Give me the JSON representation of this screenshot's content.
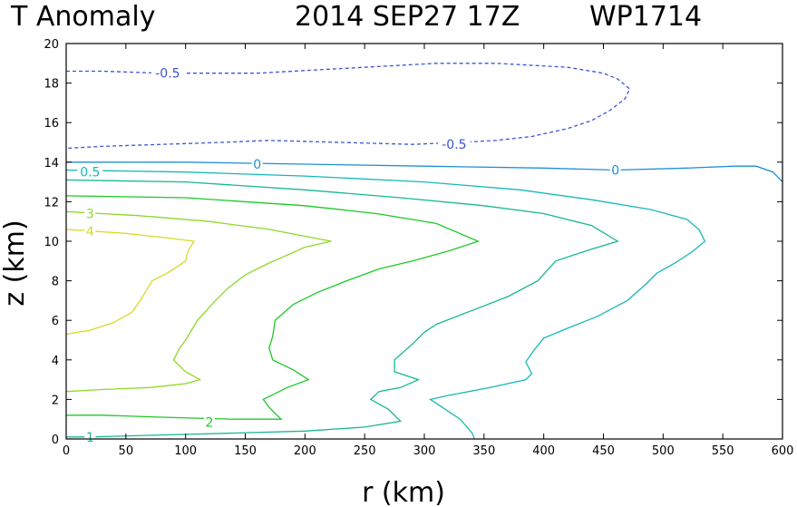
{
  "title": {
    "variable": "T Anomaly",
    "date": "2014 SEP27 17Z",
    "storm": "WP1714"
  },
  "chart_data": {
    "type": "contour",
    "title": "T Anomaly   2014 SEP27 17Z   WP1714",
    "xlabel": "r (km)",
    "ylabel": "z (km)",
    "xlim": [
      0,
      600
    ],
    "ylim": [
      0,
      20
    ],
    "xticks": [
      "0",
      "50",
      "100",
      "150",
      "200",
      "250",
      "300",
      "350",
      "400",
      "450",
      "500",
      "550",
      "600"
    ],
    "yticks": [
      "0",
      "2",
      "4",
      "6",
      "8",
      "10",
      "12",
      "14",
      "16",
      "18",
      "20"
    ],
    "contours": [
      {
        "level": -0.5,
        "label": "-0.5",
        "color": "#3b55d6",
        "dashed": true,
        "points": [
          [
            0,
            18.6
          ],
          [
            30,
            18.6
          ],
          [
            80,
            18.5
          ],
          [
            160,
            18.5
          ],
          [
            220,
            18.7
          ],
          [
            280,
            18.9
          ],
          [
            310,
            19.0
          ],
          [
            360,
            19.0
          ],
          [
            420,
            18.8
          ],
          [
            450,
            18.5
          ],
          [
            462,
            18.2
          ],
          [
            472,
            17.7
          ],
          [
            468,
            17.2
          ],
          [
            455,
            16.6
          ],
          [
            440,
            16.1
          ],
          [
            420,
            15.7
          ],
          [
            390,
            15.3
          ],
          [
            360,
            15.1
          ],
          [
            330,
            15.0
          ],
          [
            290,
            14.9
          ],
          [
            230,
            15.0
          ],
          [
            170,
            15.1
          ],
          [
            130,
            15.0
          ],
          [
            80,
            14.9
          ],
          [
            30,
            14.8
          ],
          [
            0,
            14.7
          ]
        ],
        "label_at": [
          [
            85,
            18.5
          ],
          [
            325,
            14.9
          ]
        ]
      },
      {
        "level": 0,
        "label": "0",
        "color": "#1e8fd8",
        "dashed": false,
        "points": [
          [
            0,
            14.0
          ],
          [
            100,
            14.0
          ],
          [
            200,
            13.9
          ],
          [
            300,
            13.8
          ],
          [
            400,
            13.7
          ],
          [
            460,
            13.6
          ],
          [
            520,
            13.7
          ],
          [
            560,
            13.8
          ],
          [
            578,
            13.8
          ],
          [
            592,
            13.5
          ],
          [
            600,
            13.0
          ]
        ],
        "label_at": [
          [
            160,
            13.9
          ],
          [
            460,
            13.6
          ]
        ]
      },
      {
        "level": 0.5,
        "label": "0.5",
        "color": "#17b8b8",
        "dashed": false,
        "points": [
          [
            0,
            13.6
          ],
          [
            100,
            13.5
          ],
          [
            200,
            13.3
          ],
          [
            300,
            13.0
          ],
          [
            380,
            12.6
          ],
          [
            440,
            12.1
          ],
          [
            490,
            11.6
          ],
          [
            520,
            11.1
          ],
          [
            530,
            10.6
          ],
          [
            535,
            10.0
          ],
          [
            525,
            9.5
          ],
          [
            510,
            8.9
          ],
          [
            495,
            8.4
          ],
          [
            485,
            7.8
          ],
          [
            470,
            7.0
          ],
          [
            445,
            6.2
          ],
          [
            420,
            5.6
          ],
          [
            400,
            5.1
          ],
          [
            392,
            4.5
          ],
          [
            385,
            3.9
          ],
          [
            390,
            3.3
          ],
          [
            385,
            3.0
          ],
          [
            355,
            2.6
          ],
          [
            320,
            2.2
          ],
          [
            305,
            2.0
          ],
          [
            315,
            1.6
          ],
          [
            330,
            1.0
          ],
          [
            340,
            0.3
          ],
          [
            342,
            0.0
          ]
        ],
        "label_at": [
          [
            20,
            13.5
          ]
        ]
      },
      {
        "level": 1,
        "label": "1",
        "color": "#17b890",
        "dashed": false,
        "points": [
          [
            0,
            13.1
          ],
          [
            100,
            13.0
          ],
          [
            200,
            12.6
          ],
          [
            280,
            12.2
          ],
          [
            350,
            11.8
          ],
          [
            400,
            11.4
          ],
          [
            440,
            10.8
          ],
          [
            462,
            10.0
          ],
          [
            440,
            9.6
          ],
          [
            410,
            9.0
          ],
          [
            395,
            8.0
          ],
          [
            370,
            7.2
          ],
          [
            340,
            6.5
          ],
          [
            310,
            5.8
          ],
          [
            300,
            5.4
          ],
          [
            290,
            4.8
          ],
          [
            275,
            4.0
          ],
          [
            275,
            3.4
          ],
          [
            295,
            3.0
          ],
          [
            280,
            2.6
          ],
          [
            262,
            2.4
          ],
          [
            255,
            2.0
          ],
          [
            270,
            1.5
          ],
          [
            280,
            0.9
          ],
          [
            250,
            0.6
          ],
          [
            200,
            0.4
          ],
          [
            140,
            0.3
          ],
          [
            80,
            0.2
          ],
          [
            20,
            0.1
          ],
          [
            0,
            0.1
          ]
        ],
        "label_at": [
          [
            20,
            0.1
          ]
        ]
      },
      {
        "level": 2,
        "label": "2",
        "color": "#1ec828",
        "dashed": false,
        "points": [
          [
            0,
            12.3
          ],
          [
            100,
            12.2
          ],
          [
            200,
            11.8
          ],
          [
            260,
            11.4
          ],
          [
            310,
            10.9
          ],
          [
            345,
            10.0
          ],
          [
            320,
            9.5
          ],
          [
            290,
            9.0
          ],
          [
            262,
            8.6
          ],
          [
            235,
            8.0
          ],
          [
            210,
            7.4
          ],
          [
            190,
            6.8
          ],
          [
            175,
            6.0
          ],
          [
            173,
            5.2
          ],
          [
            170,
            4.6
          ],
          [
            173,
            4.0
          ],
          [
            190,
            3.5
          ],
          [
            203,
            3.0
          ],
          [
            185,
            2.6
          ],
          [
            175,
            2.3
          ],
          [
            165,
            2.0
          ],
          [
            170,
            1.6
          ],
          [
            180,
            1.0
          ],
          [
            140,
            1.0
          ],
          [
            80,
            1.1
          ],
          [
            30,
            1.2
          ],
          [
            0,
            1.2
          ]
        ],
        "label_at": [
          [
            120,
            0.85
          ]
        ]
      },
      {
        "level": 3,
        "label": "3",
        "color": "#8fd828",
        "dashed": false,
        "points": [
          [
            0,
            11.5
          ],
          [
            60,
            11.3
          ],
          [
            120,
            11.0
          ],
          [
            170,
            10.6
          ],
          [
            222,
            10.0
          ],
          [
            200,
            9.7
          ],
          [
            185,
            9.3
          ],
          [
            170,
            8.9
          ],
          [
            150,
            8.3
          ],
          [
            135,
            7.6
          ],
          [
            125,
            7.0
          ],
          [
            110,
            6.0
          ],
          [
            100,
            5.0
          ],
          [
            95,
            4.6
          ],
          [
            90,
            4.0
          ],
          [
            100,
            3.4
          ],
          [
            112,
            3.0
          ],
          [
            100,
            2.8
          ],
          [
            70,
            2.6
          ],
          [
            30,
            2.5
          ],
          [
            0,
            2.4
          ]
        ],
        "label_at": [
          [
            20,
            11.4
          ]
        ]
      },
      {
        "level": 4,
        "label": "4",
        "color": "#d8d828",
        "dashed": false,
        "points": [
          [
            0,
            10.6
          ],
          [
            50,
            10.4
          ],
          [
            80,
            10.2
          ],
          [
            107,
            10.0
          ],
          [
            102,
            9.5
          ],
          [
            100,
            9.0
          ],
          [
            85,
            8.4
          ],
          [
            72,
            8.0
          ],
          [
            68,
            7.6
          ],
          [
            62,
            7.0
          ],
          [
            55,
            6.4
          ],
          [
            40,
            5.9
          ],
          [
            20,
            5.5
          ],
          [
            0,
            5.3
          ]
        ],
        "label_at": [
          [
            20,
            10.5
          ]
        ]
      }
    ]
  }
}
